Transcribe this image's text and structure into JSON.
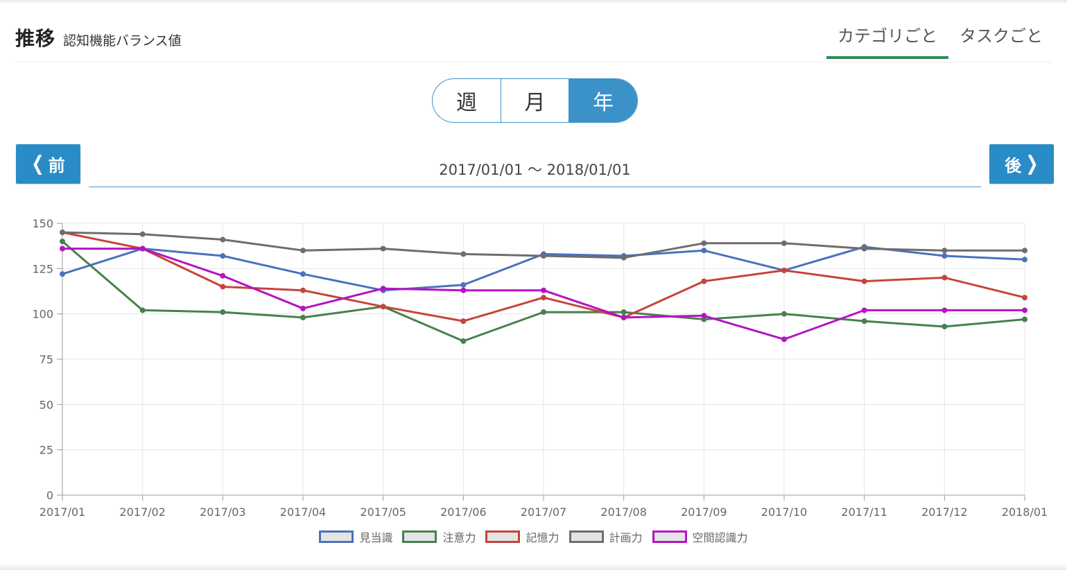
{
  "header": {
    "title": "推移",
    "subtitle": "認知機能バランス値",
    "tabs": [
      {
        "label": "カテゴリごと",
        "active": true
      },
      {
        "label": "タスクごと",
        "active": false
      }
    ]
  },
  "period_toggle": {
    "options": [
      "週",
      "月",
      "年"
    ],
    "selected": "年"
  },
  "navigation": {
    "prev_label": "前",
    "next_label": "後",
    "range_text": "2017/01/01 ～ 2018/01/01"
  },
  "colors": {
    "accent": "#2a8cc7",
    "tab_underline": "#2f8a56"
  },
  "chart_data": {
    "type": "line",
    "title": "",
    "xlabel": "",
    "ylabel": "",
    "ylim": [
      0,
      150
    ],
    "yticks": [
      0,
      25,
      50,
      75,
      100,
      125,
      150
    ],
    "grid": true,
    "legend_position": "bottom",
    "x": [
      "2017/01",
      "2017/02",
      "2017/03",
      "2017/04",
      "2017/05",
      "2017/06",
      "2017/07",
      "2017/08",
      "2017/09",
      "2017/10",
      "2017/11",
      "2017/12",
      "2018/01"
    ],
    "series": [
      {
        "name": "見当識",
        "color": "#4a72bd",
        "values": [
          122,
          136,
          132,
          122,
          113,
          116,
          133,
          132,
          135,
          124,
          137,
          132,
          130
        ]
      },
      {
        "name": "注意力",
        "color": "#47814a",
        "values": [
          140,
          102,
          101,
          98,
          104,
          85,
          101,
          101,
          97,
          100,
          96,
          93,
          97
        ]
      },
      {
        "name": "記憶力",
        "color": "#c5443b",
        "values": [
          145,
          136,
          115,
          113,
          104,
          96,
          109,
          98,
          118,
          124,
          118,
          120,
          109
        ]
      },
      {
        "name": "計画力",
        "color": "#6d6d6d",
        "values": [
          145,
          144,
          141,
          135,
          136,
          133,
          132,
          131,
          139,
          139,
          136,
          135,
          135
        ]
      },
      {
        "name": "空間認識力",
        "color": "#b513c4",
        "values": [
          136,
          136,
          121,
          103,
          114,
          113,
          113,
          98,
          99,
          86,
          102,
          102,
          102
        ]
      }
    ]
  }
}
